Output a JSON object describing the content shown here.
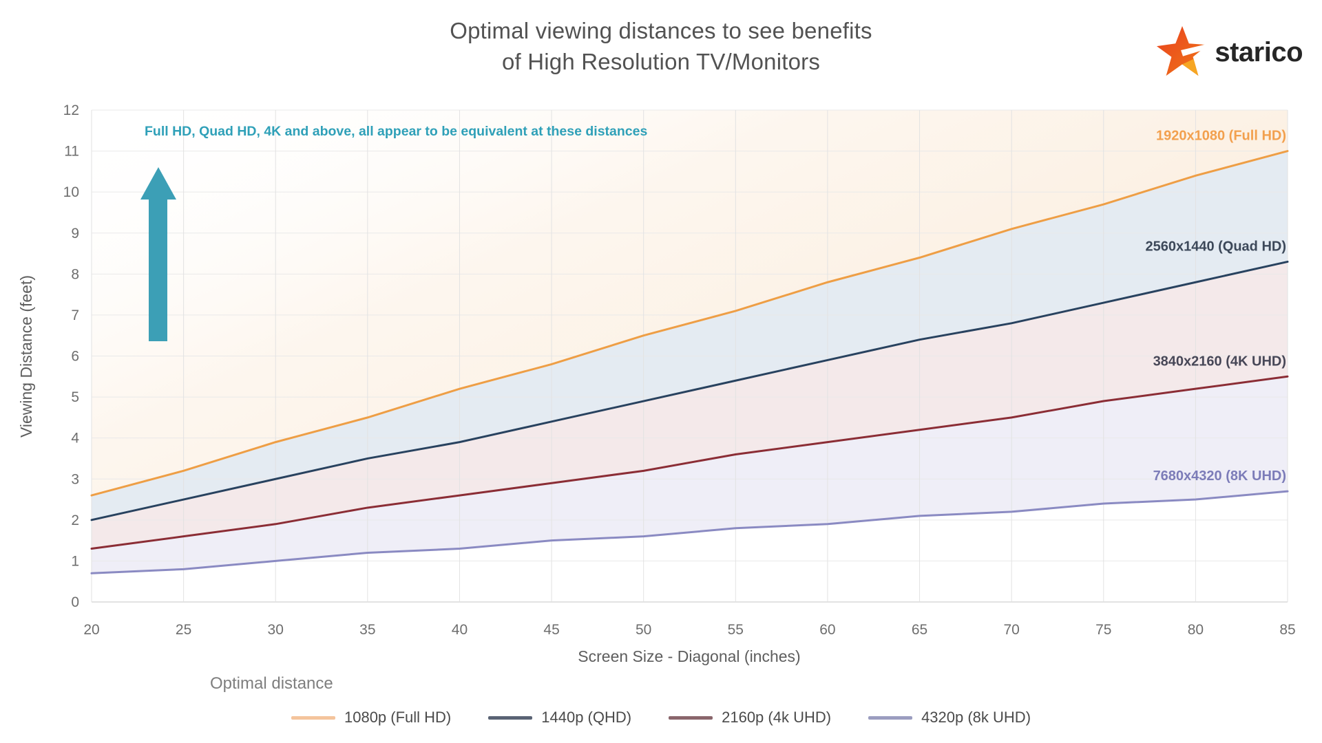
{
  "title": {
    "line1": "Optimal viewing distances to see benefits",
    "line2": "of High Resolution TV/Monitors"
  },
  "logo": {
    "text": "starico",
    "star_main_color": "#E94E1B",
    "star_mid_color": "#F07818",
    "star_accent_color": "#F6A623"
  },
  "annotation": {
    "text": "Full HD, Quad HD, 4K and above, all appear to be equivalent at these distances",
    "color": "#2FA0B8",
    "arrow_color": "#3C9FB6",
    "arrow_direction": "up"
  },
  "chart_data": {
    "type": "line",
    "title": "Optimal viewing distances to see benefits of High Resolution TV/Monitors",
    "xlabel": "Screen Size - Diagonal (inches)",
    "ylabel": "Viewing Distance (feet)",
    "xlim": [
      20,
      85
    ],
    "ylim": [
      0,
      12
    ],
    "x_ticks": [
      20,
      25,
      30,
      35,
      40,
      45,
      50,
      55,
      60,
      65,
      70,
      75,
      80,
      85
    ],
    "y_ticks": [
      0,
      1,
      2,
      3,
      4,
      5,
      6,
      7,
      8,
      9,
      10,
      11,
      12
    ],
    "grid": true,
    "legend_title": "Optimal distance",
    "legend_position": "bottom",
    "x": [
      20,
      25,
      30,
      35,
      40,
      45,
      50,
      55,
      60,
      65,
      70,
      75,
      80,
      85
    ],
    "series": [
      {
        "name": "1080p (Full HD)",
        "end_label": "1920x1080 (Full HD)",
        "line_color": "#EE9E45",
        "end_label_color": "#F2A04E",
        "legend_swatch_color": "#F4C49C",
        "values": [
          2.6,
          3.2,
          3.9,
          4.5,
          5.2,
          5.8,
          6.5,
          7.1,
          7.8,
          8.4,
          9.1,
          9.7,
          10.4,
          11.0
        ]
      },
      {
        "name": "1440p (QHD)",
        "end_label": "2560x1440 (Quad HD)",
        "line_color": "#28425F",
        "end_label_color": "#3C4859",
        "legend_swatch_color": "#5A6374",
        "values": [
          2.0,
          2.5,
          3.0,
          3.5,
          3.9,
          4.4,
          4.9,
          5.4,
          5.9,
          6.4,
          6.8,
          7.3,
          7.8,
          8.3
        ]
      },
      {
        "name": "2160p (4k UHD)",
        "end_label": "3840x2160 (4K UHD)",
        "line_color": "#8B2D35",
        "end_label_color": "#474757",
        "legend_swatch_color": "#8A666C",
        "values": [
          1.3,
          1.6,
          1.9,
          2.3,
          2.6,
          2.9,
          3.2,
          3.6,
          3.9,
          4.2,
          4.5,
          4.9,
          5.2,
          5.5
        ]
      },
      {
        "name": "4320p (8k UHD)",
        "end_label": "7680x4320 (8K UHD)",
        "line_color": "#8A8AC2",
        "end_label_color": "#7C7CB8",
        "legend_swatch_color": "#9B9DC0",
        "values": [
          0.7,
          0.8,
          1.0,
          1.2,
          1.3,
          1.5,
          1.6,
          1.8,
          1.9,
          2.1,
          2.2,
          2.4,
          2.5,
          2.7
        ]
      }
    ],
    "band_fills": {
      "above_1080p_gradient_start": "rgba(255,255,255,0)",
      "above_1080p_gradient_mid": "rgba(251,236,219,0.45)",
      "above_1080p_gradient_end": "rgba(248,222,193,0.65)",
      "between_1080p_1440p": "rgba(205,219,232,0.55)",
      "between_1440p_2160p": "rgba(233,211,213,0.50)",
      "between_2160p_4320p": "rgba(224,221,239,0.50)"
    },
    "style": {
      "h_gridline_color": "#e9e9e9",
      "v_gridline_color": "#e2e2e2",
      "axis_line_color": "#d8d8d8",
      "tick_label_color": "#6e6e6e",
      "axis_title_color": "#5d5d5d",
      "title_color": "#525252"
    }
  }
}
